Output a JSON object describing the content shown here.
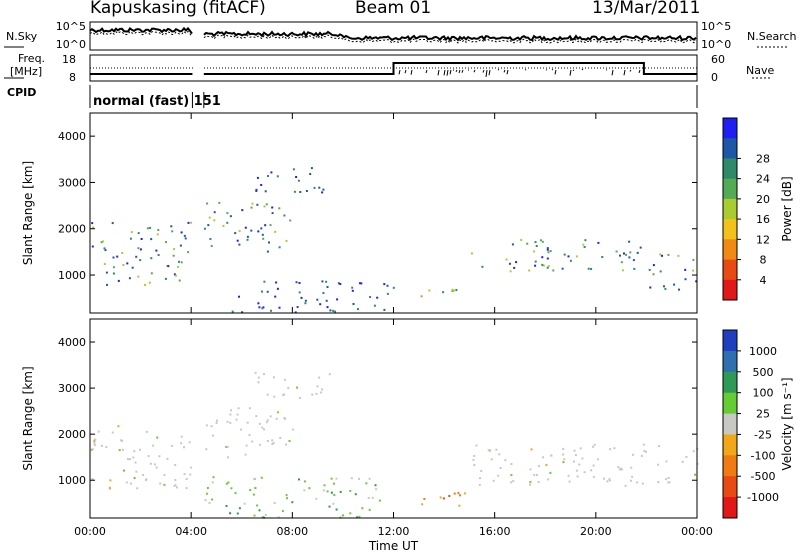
{
  "header": {
    "station": "Kapuskasing (fitACF)",
    "beam": "Beam 01",
    "date": "13/Mar/2011"
  },
  "status_panel": {
    "nsky_label": "N.Sky",
    "nsearch_label": "N.Search",
    "freq_label_1": "Freq.",
    "freq_label_2": "[MHz]",
    "nave_label": "Nave",
    "cpid_label": "CPID",
    "cpid_value": "normal (fast) 151",
    "noise_ticks": [
      "10^5",
      "10^0"
    ],
    "freq_ticks": [
      "18",
      "8"
    ],
    "nave_ticks": [
      "60",
      "0"
    ]
  },
  "chart_data": [
    {
      "type": "heatmap",
      "name": "power",
      "xlabel": "Time UT",
      "ylabel": "Slant Range [km]",
      "x_ticks": [
        "00:00",
        "04:00",
        "08:00",
        "12:00",
        "16:00",
        "20:00",
        "00:00"
      ],
      "xlim_hours": [
        0,
        24
      ],
      "ylim": [
        180,
        4500
      ],
      "y_ticks": [
        1000,
        2000,
        3000,
        4000
      ],
      "colorbar_label": "Power [dB]",
      "colorbar_ticks": [
        "4",
        "8",
        "12",
        "16",
        "20",
        "24",
        "28"
      ],
      "colorbar_colors": [
        "#1f1ff2",
        "#1f57a8",
        "#2e8a6a",
        "#55aa55",
        "#aacc33",
        "#f2c21a",
        "#f08a14",
        "#e84a14",
        "#e01818"
      ],
      "regions": [
        {
          "t": [
            0.0,
            4.0
          ],
          "r": [
            800,
            2200
          ],
          "level": "mid"
        },
        {
          "t": [
            4.5,
            8.0
          ],
          "r": [
            1500,
            2600
          ],
          "level": "mid"
        },
        {
          "t": [
            6.5,
            9.5
          ],
          "r": [
            2800,
            3400
          ],
          "level": "low"
        },
        {
          "t": [
            5.5,
            12.0
          ],
          "r": [
            200,
            900
          ],
          "level": "low"
        },
        {
          "t": [
            13.0,
            15.0
          ],
          "r": [
            500,
            800
          ],
          "level": "high"
        },
        {
          "t": [
            15.0,
            22.0
          ],
          "r": [
            1100,
            1800
          ],
          "level": "mid"
        },
        {
          "t": [
            22.0,
            24.0
          ],
          "r": [
            700,
            1500
          ],
          "level": "mid"
        }
      ]
    },
    {
      "type": "heatmap",
      "name": "velocity",
      "xlabel": "Time UT",
      "ylabel": "Slant Range [km]",
      "x_ticks": [
        "00:00",
        "04:00",
        "08:00",
        "12:00",
        "16:00",
        "20:00",
        "00:00"
      ],
      "xlim_hours": [
        0,
        24
      ],
      "ylim": [
        180,
        4500
      ],
      "y_ticks": [
        1000,
        2000,
        3000,
        4000
      ],
      "colorbar_label": "Velocity [m s⁻¹]",
      "colorbar_ticks": [
        "1000",
        "500",
        "100",
        "25",
        "-25",
        "-100",
        "-500",
        "-1000"
      ],
      "colorbar_colors": [
        "#1f3fbf",
        "#2e6fb0",
        "#2e9a55",
        "#66cc33",
        "#c8c8c4",
        "#f2a71a",
        "#f07a14",
        "#e84a14",
        "#e01818"
      ],
      "regions": [
        {
          "t": [
            0.0,
            4.0
          ],
          "r": [
            800,
            2200
          ],
          "level": "gs"
        },
        {
          "t": [
            4.5,
            8.0
          ],
          "r": [
            1500,
            2600
          ],
          "level": "gs"
        },
        {
          "t": [
            6.5,
            9.5
          ],
          "r": [
            2800,
            3400
          ],
          "level": "gs"
        },
        {
          "t": [
            4.5,
            11.5
          ],
          "r": [
            200,
            1100
          ],
          "level": "pos"
        },
        {
          "t": [
            12.5,
            15.0
          ],
          "r": [
            450,
            800
          ],
          "level": "neg"
        },
        {
          "t": [
            15.0,
            24.0
          ],
          "r": [
            900,
            1800
          ],
          "level": "gs"
        }
      ]
    }
  ]
}
